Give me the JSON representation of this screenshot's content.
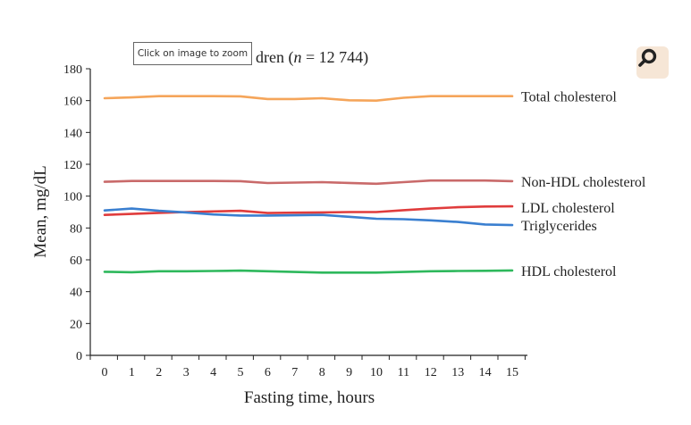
{
  "zoom_tooltip": "Click on image to zoom",
  "zoom_button_icon": "magnifier-icon",
  "chart_data": {
    "type": "line",
    "title_visible_fragment": "dren (n = 12 744)",
    "title_parts": {
      "before": "dren (",
      "italic": "n",
      "after": " = 12 744)"
    },
    "xlabel": "Fasting time, hours",
    "ylabel": "Mean, mg/dL",
    "x": [
      0,
      1,
      2,
      3,
      4,
      5,
      6,
      7,
      8,
      9,
      10,
      11,
      12,
      13,
      14,
      15
    ],
    "xticks": [
      "0",
      "1",
      "2",
      "3",
      "4",
      "5",
      "6",
      "7",
      "8",
      "9",
      "10",
      "11",
      "12",
      "13",
      "14",
      "15"
    ],
    "ylim": [
      0,
      180
    ],
    "yticks": [
      "0",
      "20",
      "40",
      "60",
      "80",
      "100",
      "120",
      "140",
      "160",
      "180"
    ],
    "grid": false,
    "series": [
      {
        "name": "Total cholesterol",
        "color": "#f5a55a",
        "values": [
          161.5,
          162,
          162.8,
          162.8,
          162.8,
          162.7,
          161,
          161,
          161.5,
          160.2,
          160,
          161.8,
          162.8,
          162.8,
          162.8,
          162.8
        ]
      },
      {
        "name": "Non-HDL cholesterol",
        "color": "#c96a6a",
        "values": [
          109,
          109.5,
          109.5,
          109.5,
          109.5,
          109.4,
          108.2,
          108.5,
          108.8,
          108.3,
          107.8,
          108.8,
          109.8,
          109.8,
          109.8,
          109.4
        ]
      },
      {
        "name": "LDL cholesterol",
        "color": "#e03c3c",
        "values": [
          88.2,
          88.8,
          89.5,
          90,
          90.4,
          90.8,
          89.4,
          89.6,
          89.8,
          90,
          90,
          91.2,
          92.2,
          93,
          93.5,
          93.6
        ]
      },
      {
        "name": "Triglycerides",
        "color": "#3a7fd0",
        "values": [
          91,
          92.2,
          90.8,
          89.8,
          88.5,
          87.8,
          87.8,
          88,
          88.2,
          87,
          85.8,
          85.5,
          84.8,
          83.8,
          82.2,
          81.8
        ]
      },
      {
        "name": "HDL cholesterol",
        "color": "#2eb85c",
        "values": [
          52.5,
          52.2,
          52.8,
          52.8,
          53,
          53.2,
          52.8,
          52.4,
          52,
          52,
          52,
          52.4,
          52.8,
          53,
          53.1,
          53.3
        ]
      }
    ]
  }
}
